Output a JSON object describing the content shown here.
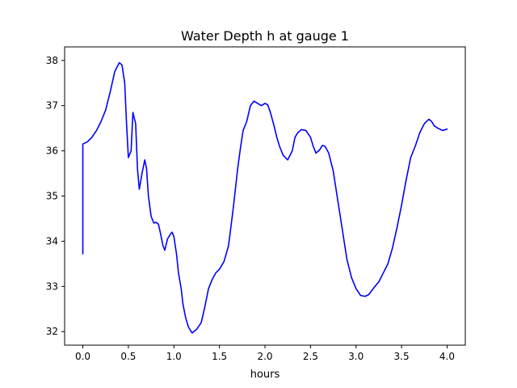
{
  "chart_data": {
    "type": "line",
    "title": "Water Depth h at gauge 1",
    "xlabel": "hours",
    "ylabel": "",
    "xlim": [
      -0.2,
      4.2
    ],
    "ylim": [
      31.7,
      38.3
    ],
    "xticks": [
      0.0,
      0.5,
      1.0,
      1.5,
      2.0,
      2.5,
      3.0,
      3.5,
      4.0
    ],
    "xtick_labels": [
      "0.0",
      "0.5",
      "1.0",
      "1.5",
      "2.0",
      "2.5",
      "3.0",
      "3.5",
      "4.0"
    ],
    "yticks": [
      32,
      33,
      34,
      35,
      36,
      37,
      38
    ],
    "ytick_labels": [
      "32",
      "33",
      "34",
      "35",
      "36",
      "37",
      "38"
    ],
    "grid": false,
    "legend": "none",
    "series": [
      {
        "color": "#0000ff",
        "x": [
          0.0,
          0.0,
          0.05,
          0.1,
          0.15,
          0.2,
          0.25,
          0.3,
          0.35,
          0.4,
          0.43,
          0.46,
          0.48,
          0.5,
          0.53,
          0.55,
          0.58,
          0.6,
          0.62,
          0.65,
          0.68,
          0.7,
          0.72,
          0.75,
          0.78,
          0.8,
          0.83,
          0.85,
          0.88,
          0.9,
          0.93,
          0.96,
          0.98,
          1.0,
          1.03,
          1.05,
          1.08,
          1.1,
          1.13,
          1.16,
          1.2,
          1.25,
          1.3,
          1.34,
          1.38,
          1.42,
          1.46,
          1.5,
          1.55,
          1.6,
          1.65,
          1.7,
          1.73,
          1.76,
          1.8,
          1.84,
          1.88,
          1.92,
          1.96,
          2.0,
          2.03,
          2.06,
          2.1,
          2.13,
          2.16,
          2.2,
          2.25,
          2.3,
          2.33,
          2.36,
          2.4,
          2.45,
          2.5,
          2.53,
          2.56,
          2.6,
          2.63,
          2.66,
          2.7,
          2.75,
          2.8,
          2.85,
          2.9,
          2.95,
          3.0,
          3.05,
          3.1,
          3.14,
          3.17,
          3.2,
          3.25,
          3.3,
          3.35,
          3.4,
          3.45,
          3.5,
          3.55,
          3.6,
          3.65,
          3.7,
          3.75,
          3.8,
          3.83,
          3.86,
          3.9,
          3.95,
          4.0
        ],
        "y": [
          33.72,
          36.15,
          36.2,
          36.3,
          36.45,
          36.65,
          36.9,
          37.3,
          37.75,
          37.95,
          37.9,
          37.5,
          36.6,
          35.85,
          36.0,
          36.85,
          36.6,
          35.6,
          35.15,
          35.5,
          35.8,
          35.6,
          35.0,
          34.55,
          34.4,
          34.42,
          34.38,
          34.2,
          33.9,
          33.8,
          34.05,
          34.15,
          34.2,
          34.1,
          33.7,
          33.3,
          32.95,
          32.6,
          32.3,
          32.1,
          31.97,
          32.05,
          32.2,
          32.55,
          32.95,
          33.15,
          33.3,
          33.38,
          33.55,
          33.9,
          34.7,
          35.6,
          36.05,
          36.45,
          36.65,
          37.0,
          37.1,
          37.05,
          37.0,
          37.05,
          37.02,
          36.85,
          36.55,
          36.3,
          36.1,
          35.9,
          35.8,
          36.0,
          36.3,
          36.4,
          36.47,
          36.45,
          36.3,
          36.1,
          35.95,
          36.02,
          36.12,
          36.1,
          35.95,
          35.55,
          34.9,
          34.25,
          33.6,
          33.2,
          32.95,
          32.8,
          32.78,
          32.82,
          32.9,
          32.98,
          33.1,
          33.3,
          33.5,
          33.85,
          34.3,
          34.8,
          35.35,
          35.85,
          36.1,
          36.4,
          36.6,
          36.7,
          36.65,
          36.55,
          36.5,
          36.45,
          36.48
        ]
      }
    ]
  }
}
